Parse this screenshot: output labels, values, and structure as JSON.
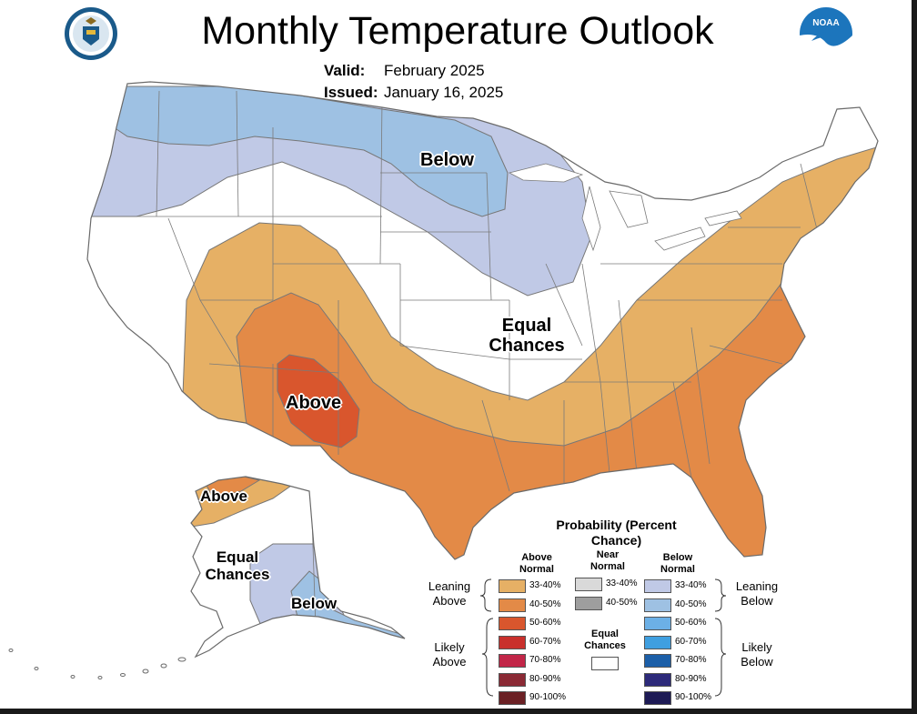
{
  "title": "Monthly Temperature Outlook",
  "valid_label": "Valid:",
  "valid_value": "February 2025",
  "issued_label": "Issued:",
  "issued_value": "January 16, 2025",
  "logos": {
    "left": "doc-seal-logo",
    "right": "noaa-logo"
  },
  "map_labels": {
    "below_conus": "Below",
    "equal_chances_conus": "Equal Chances",
    "above_conus": "Above",
    "above_alaska": "Above",
    "equal_chances_alaska": "Equal Chances",
    "below_alaska": "Below"
  },
  "legend": {
    "title": "Probability (Percent Chance)",
    "col_above": "Above Normal",
    "col_near": "Near Normal",
    "col_below": "Below Normal",
    "leaning_above": "Leaning Above",
    "likely_above": "Likely Above",
    "equal_chances": "Equal Chances",
    "leaning_below": "Leaning Below",
    "likely_below": "Likely Below",
    "above": [
      {
        "label": "33-40%",
        "color": "#e6b065"
      },
      {
        "label": "40-50%",
        "color": "#e38a47"
      },
      {
        "label": "50-60%",
        "color": "#d9562d"
      },
      {
        "label": "60-70%",
        "color": "#c9302c"
      },
      {
        "label": "70-80%",
        "color": "#c22648"
      },
      {
        "label": "80-90%",
        "color": "#8b2a35"
      },
      {
        "label": "90-100%",
        "color": "#6b2024"
      }
    ],
    "near": [
      {
        "label": "33-40%",
        "color": "#d9d9d9"
      },
      {
        "label": "40-50%",
        "color": "#9e9e9e"
      }
    ],
    "below": [
      {
        "label": "33-40%",
        "color": "#c0c9e6"
      },
      {
        "label": "40-50%",
        "color": "#9ec1e3"
      },
      {
        "label": "50-60%",
        "color": "#6cb0e6"
      },
      {
        "label": "60-70%",
        "color": "#3f9fe0"
      },
      {
        "label": "70-80%",
        "color": "#1c5fa8"
      },
      {
        "label": "80-90%",
        "color": "#2d2a7a"
      },
      {
        "label": "90-100%",
        "color": "#1d1a55"
      }
    ],
    "equal_color": "#ffffff"
  }
}
